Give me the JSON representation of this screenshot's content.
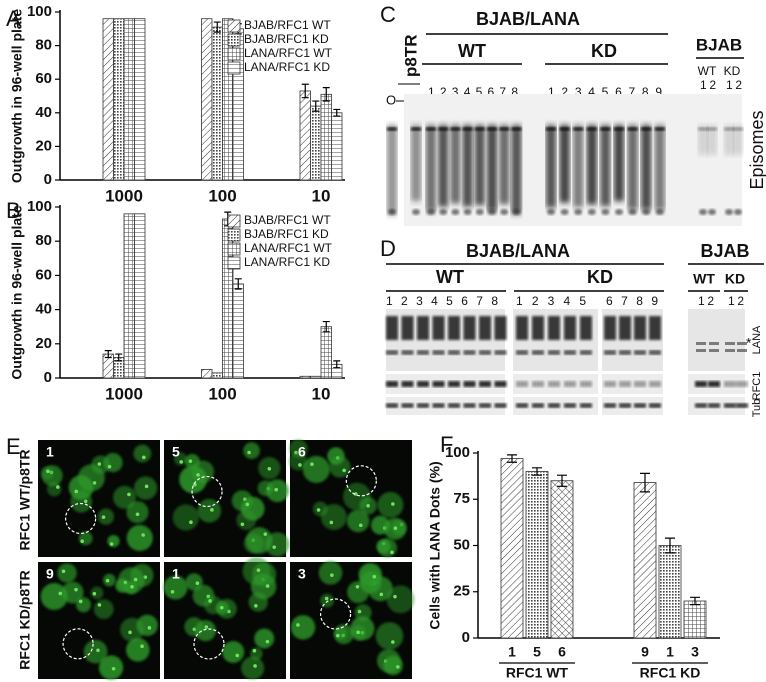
{
  "chart_data": [
    {
      "type": "bar",
      "panel": "A",
      "ylabel": "Outgrowth in 96-well plate",
      "categories": [
        "1000",
        "100",
        "10"
      ],
      "ylim": [
        0,
        100
      ],
      "yticks": [
        0,
        20,
        40,
        60,
        80,
        100
      ],
      "legend": "upper right",
      "series": [
        {
          "name": "BJAB/RFC1 WT",
          "color": "#333333",
          "pattern": "diag",
          "values": [
            96,
            96,
            53
          ],
          "errors": [
            null,
            null,
            4
          ]
        },
        {
          "name": "BJAB/RFC1 KD",
          "color": "#333333",
          "pattern": "dots",
          "values": [
            96,
            91,
            44
          ],
          "errors": [
            null,
            3,
            3
          ]
        },
        {
          "name": "LANA/RFC1 WT",
          "color": "#333333",
          "pattern": "grid",
          "values": [
            96,
            96,
            51
          ],
          "errors": [
            null,
            null,
            4
          ]
        },
        {
          "name": "LANA/RFC1 KD",
          "color": "#333333",
          "pattern": "horiz",
          "values": [
            96,
            90,
            40
          ],
          "errors": [
            null,
            3,
            2
          ]
        }
      ]
    },
    {
      "type": "bar",
      "panel": "B",
      "ylabel": "Outgrowth in 96-well plate",
      "categories": [
        "1000",
        "100",
        "10"
      ],
      "ylim": [
        0,
        100
      ],
      "yticks": [
        0,
        20,
        40,
        60,
        80,
        100
      ],
      "legend": "upper right",
      "series": [
        {
          "name": "BJAB/RFC1 WT",
          "color": "#333333",
          "pattern": "diag",
          "values": [
            14,
            5,
            1
          ],
          "errors": [
            2,
            null,
            null
          ]
        },
        {
          "name": "BJAB/RFC1 KD",
          "color": "#333333",
          "pattern": "dots",
          "values": [
            12,
            3,
            1
          ],
          "errors": [
            2,
            null,
            null
          ]
        },
        {
          "name": "LANA/RFC1 WT",
          "color": "#333333",
          "pattern": "grid",
          "values": [
            96,
            93,
            30
          ],
          "errors": [
            null,
            4,
            3
          ]
        },
        {
          "name": "LANA/RFC1 KD",
          "color": "#333333",
          "pattern": "horiz",
          "values": [
            96,
            55,
            8
          ],
          "errors": [
            null,
            3,
            2
          ]
        }
      ]
    },
    {
      "type": "bar",
      "panel": "F",
      "ylabel": "Cells with LANA Dots (%)",
      "categories": [
        "1",
        "5",
        "6",
        "9",
        "1",
        "3"
      ],
      "group_labels": [
        "RFC1 WT",
        "RFC1 KD"
      ],
      "values": [
        97,
        90,
        85,
        84,
        50,
        20
      ],
      "errors": [
        2,
        2,
        3,
        5,
        4,
        2
      ],
      "color": "#333333",
      "patterns": [
        "diag",
        "dots",
        "cross",
        "diag",
        "dots",
        "grid"
      ],
      "ylim": [
        0,
        100
      ],
      "yticks": [
        0,
        25,
        50,
        75,
        100
      ]
    }
  ],
  "blot_c": {
    "panel": "C",
    "group": "BJAB/LANA",
    "wt": "WT",
    "kd": "KD",
    "control": "BJAB",
    "control_wt": "WT",
    "control_kd": "KD",
    "marker": "p8TR",
    "wt_lanes": "1 2 3 4 5 6 7 8",
    "kd_lanes": "1 2 3 4 5 6 7 8 9",
    "control_wt_lanes": "1 2",
    "control_kd_lanes": "1 2",
    "origin": "O",
    "side_label": "Episomes"
  },
  "blot_d": {
    "panel": "D",
    "group": "BJAB/LANA",
    "wt": "WT",
    "kd": "KD",
    "control": "BJAB",
    "control_wt": "WT",
    "control_kd": "KD",
    "wt_lanes": "1 2 3 4 5 6 7 8",
    "kd_lanes_a": "1 2 3 4 5",
    "kd_lanes_b": "6 7 8 9",
    "control_wt_lanes": "1 2",
    "control_kd_lanes": "1 2",
    "star": "*",
    "rows": [
      "LANA",
      "RFC1",
      "Tub"
    ]
  },
  "micrographs": {
    "panel": "E",
    "row_labels": [
      "RFC1 WT/p8TR",
      "RFC1 KD/p8TR"
    ],
    "fields": [
      "1",
      "5",
      "6",
      "9",
      "1",
      "3"
    ]
  }
}
